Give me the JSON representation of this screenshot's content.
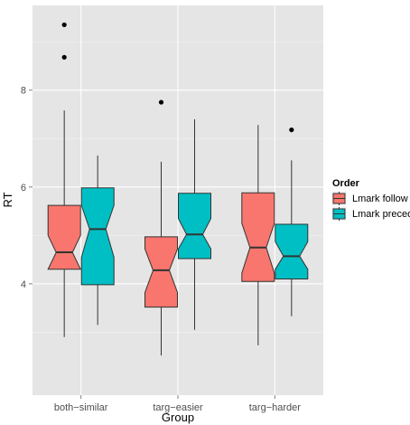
{
  "chart_data": {
    "type": "boxplot",
    "notched": true,
    "xlabel": "Group",
    "ylabel": "RT",
    "ylim": [
      1.7,
      9.75
    ],
    "yticks": [
      4,
      6,
      8
    ],
    "grid": true,
    "background": "#e5e5e5",
    "categories": [
      "both−similar",
      "targ−easier",
      "targ−harder"
    ],
    "legend": {
      "title": "Order",
      "placement": "right"
    },
    "series": [
      {
        "name": "Lmark follow",
        "color": "#f8766d",
        "boxes": [
          {
            "min": 2.9,
            "q1": 4.3,
            "median": 4.65,
            "q3": 5.62,
            "max": 7.58,
            "notch_low": 4.3,
            "notch_high": 5.0,
            "outliers": [
              8.68,
              9.35
            ]
          },
          {
            "min": 2.52,
            "q1": 3.52,
            "median": 4.28,
            "q3": 4.97,
            "max": 6.52,
            "notch_low": 3.82,
            "notch_high": 4.72,
            "outliers": [
              7.75
            ]
          },
          {
            "min": 2.73,
            "q1": 4.05,
            "median": 4.75,
            "q3": 5.88,
            "max": 7.28,
            "notch_low": 4.22,
            "notch_high": 5.25,
            "outliers": []
          }
        ]
      },
      {
        "name": "Lmark precede",
        "color": "#00bfc4",
        "boxes": [
          {
            "min": 3.15,
            "q1": 3.98,
            "median": 5.13,
            "q3": 5.98,
            "max": 6.65,
            "notch_low": 4.55,
            "notch_high": 5.62,
            "outliers": []
          },
          {
            "min": 3.05,
            "q1": 4.52,
            "median": 5.02,
            "q3": 5.87,
            "max": 7.4,
            "notch_low": 4.72,
            "notch_high": 5.35,
            "outliers": []
          },
          {
            "min": 3.33,
            "q1": 4.1,
            "median": 4.57,
            "q3": 5.23,
            "max": 6.55,
            "notch_low": 4.3,
            "notch_high": 4.87,
            "outliers": [
              7.18
            ]
          }
        ]
      }
    ]
  }
}
